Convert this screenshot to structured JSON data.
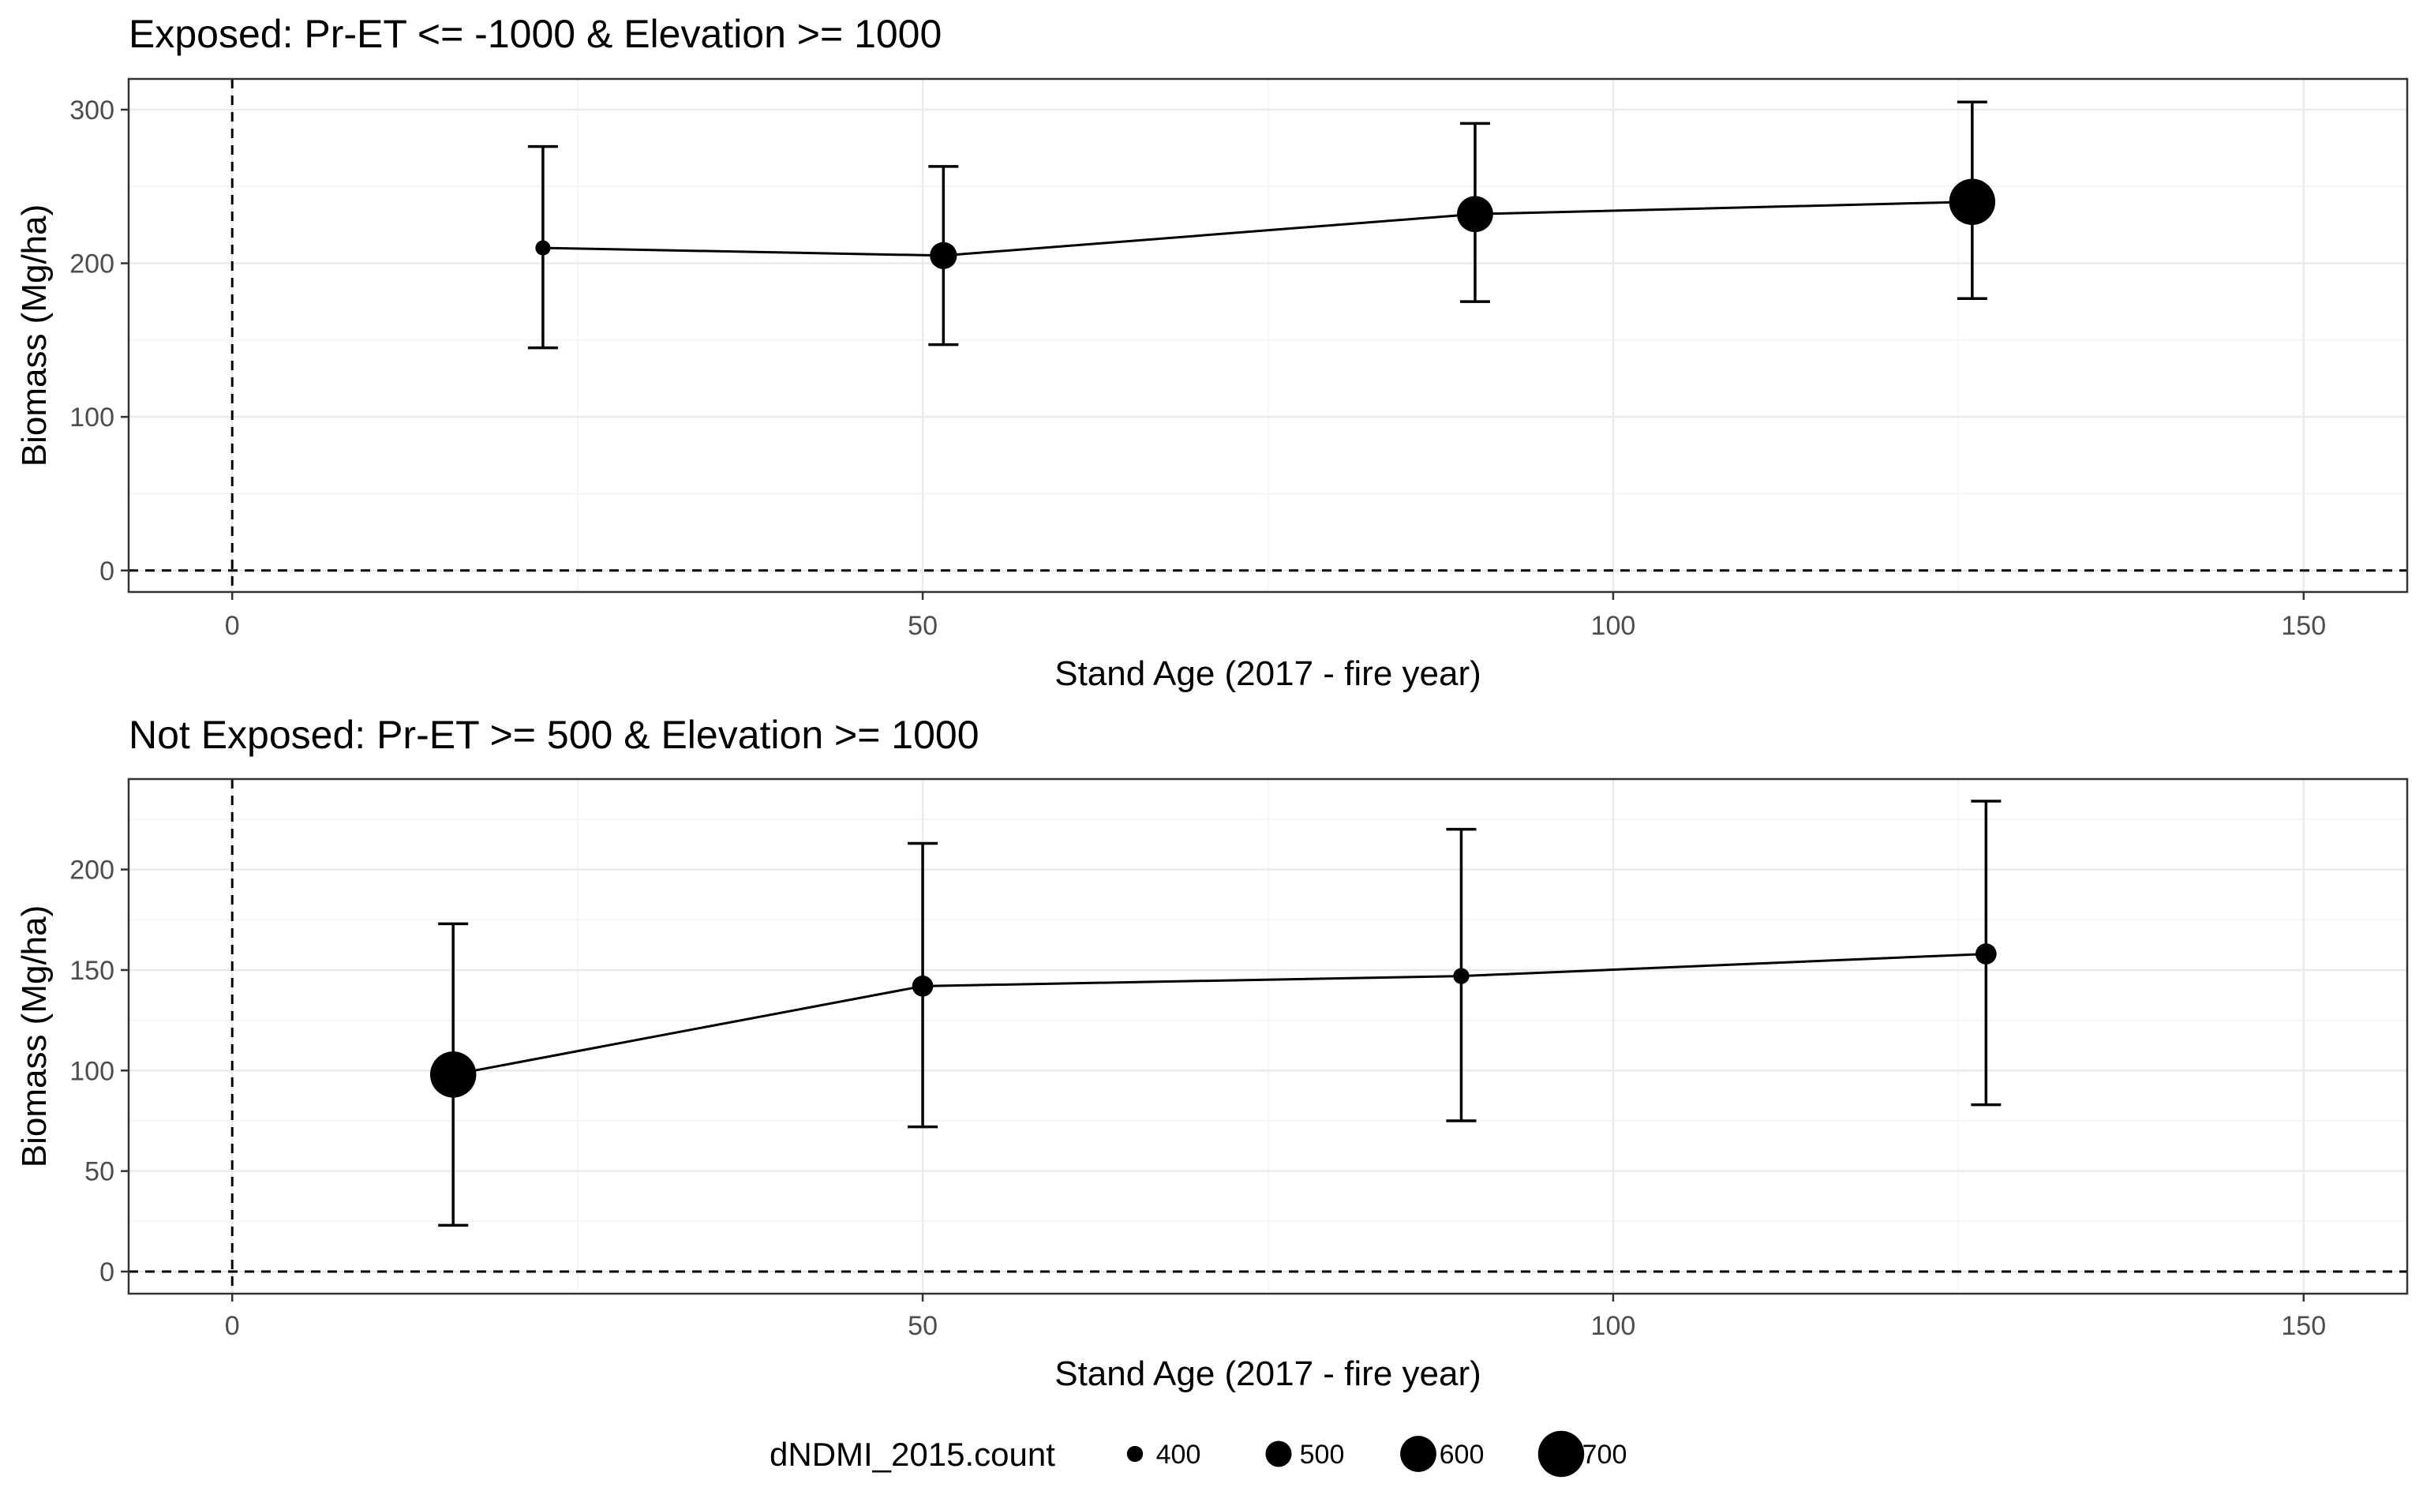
{
  "legend": {
    "title": "dNDMI_2015.count",
    "entries": [
      {
        "label": "400",
        "value": 400
      },
      {
        "label": "500",
        "value": 500
      },
      {
        "label": "600",
        "value": 600
      },
      {
        "label": "700",
        "value": 700
      }
    ]
  },
  "chart_data": [
    {
      "type": "scatter",
      "title": "Exposed: Pr-ET <= -1000 & Elevation >= 1000",
      "xlabel": "Stand Age (2017 - fire year)",
      "ylabel": "Biomass (Mg/ha)",
      "xlim": [
        -7.5,
        157.5
      ],
      "ylim": [
        -14,
        320
      ],
      "xticks": [
        0,
        50,
        100,
        150
      ],
      "yticks": [
        0,
        100,
        200,
        300
      ],
      "grid": true,
      "reference_lines": {
        "x": 0,
        "y": 0,
        "style": "dashed"
      },
      "connected": true,
      "error_bars": true,
      "size_variable": "dNDMI_2015.count",
      "points": [
        {
          "x": 22.5,
          "y": 210,
          "ymin": 145,
          "ymax": 276,
          "count": 390
        },
        {
          "x": 51.5,
          "y": 205,
          "ymin": 147,
          "ymax": 263,
          "count": 510
        },
        {
          "x": 90,
          "y": 232,
          "ymin": 175,
          "ymax": 291,
          "count": 600
        },
        {
          "x": 126,
          "y": 240,
          "ymin": 177,
          "ymax": 305,
          "count": 700
        }
      ]
    },
    {
      "type": "scatter",
      "title": "Not Exposed: Pr-ET >= 500 & Elevation >= 1000",
      "xlabel": "Stand Age (2017 - fire year)",
      "ylabel": "Biomass (Mg/ha)",
      "xlim": [
        -7.5,
        157.5
      ],
      "ylim": [
        -11,
        245
      ],
      "xticks": [
        0,
        50,
        100,
        150
      ],
      "yticks": [
        0,
        50,
        100,
        150,
        200
      ],
      "grid": true,
      "reference_lines": {
        "x": 0,
        "y": 0,
        "style": "dashed"
      },
      "connected": true,
      "error_bars": true,
      "size_variable": "dNDMI_2015.count",
      "points": [
        {
          "x": 16,
          "y": 98,
          "ymin": 23,
          "ymax": 173,
          "count": 700
        },
        {
          "x": 50,
          "y": 142,
          "ymin": 72,
          "ymax": 213,
          "count": 450
        },
        {
          "x": 89,
          "y": 147,
          "ymin": 75,
          "ymax": 220,
          "count": 400
        },
        {
          "x": 127,
          "y": 158,
          "ymin": 83,
          "ymax": 234,
          "count": 450
        }
      ]
    }
  ]
}
